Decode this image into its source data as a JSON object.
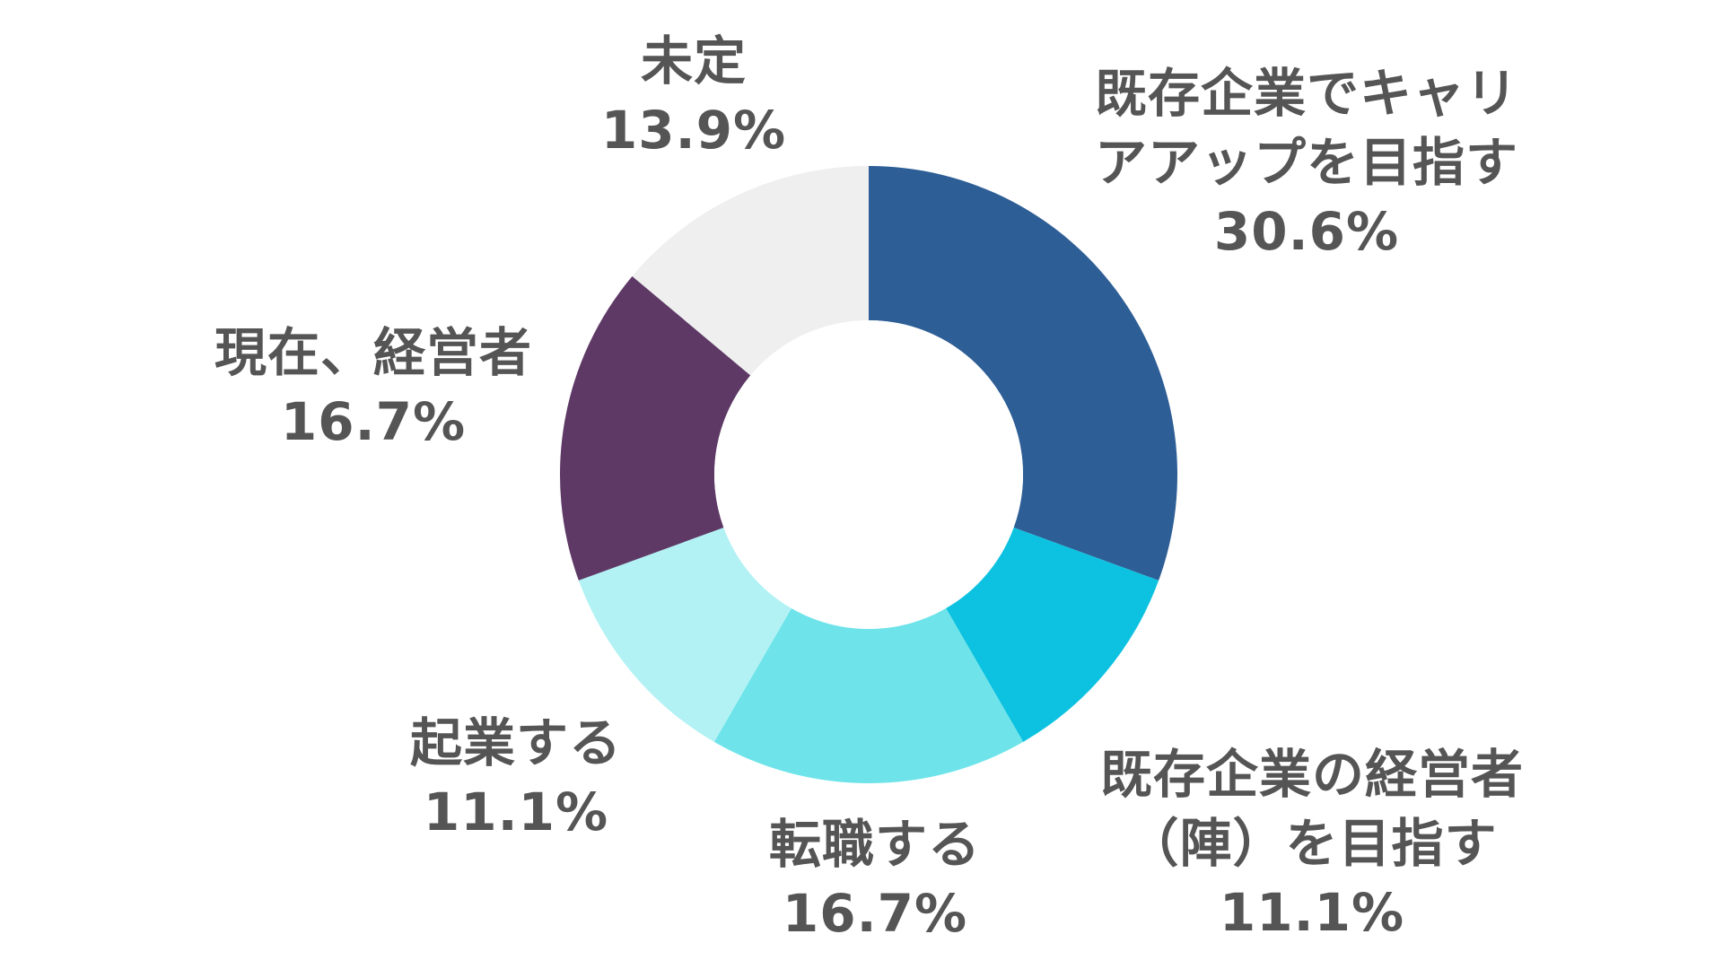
{
  "chart_data": {
    "type": "pie",
    "title": "",
    "donut": true,
    "start": "12 o'clock",
    "direction": "clockwise",
    "slices": [
      {
        "label": "既存企業でキャリアアップを目指す",
        "label_lines": [
          "既存企業でキャリ",
          "アアップを目指す"
        ],
        "value": 30.6,
        "display": "30.6%",
        "color": "#2e5e96"
      },
      {
        "label": "既存企業の経営者（陣）を目指す",
        "label_lines": [
          "既存企業の経営者",
          "（陣）を目指す"
        ],
        "value": 11.1,
        "display": "11.1%",
        "color": "#0dc2e0"
      },
      {
        "label": "転職する",
        "label_lines": [
          "転職する"
        ],
        "value": 16.7,
        "display": "16.7%",
        "color": "#6ee4ea"
      },
      {
        "label": "起業する",
        "label_lines": [
          "起業する"
        ],
        "value": 11.1,
        "display": "11.1%",
        "color": "#b2f2f4"
      },
      {
        "label": "現在、経営者",
        "label_lines": [
          "現在、経営者"
        ],
        "value": 16.7,
        "display": "16.7%",
        "color": "#5e3966"
      },
      {
        "label": "未定",
        "label_lines": [
          "未定"
        ],
        "value": 13.9,
        "display": "13.9%",
        "color": "#efeff0"
      }
    ]
  }
}
